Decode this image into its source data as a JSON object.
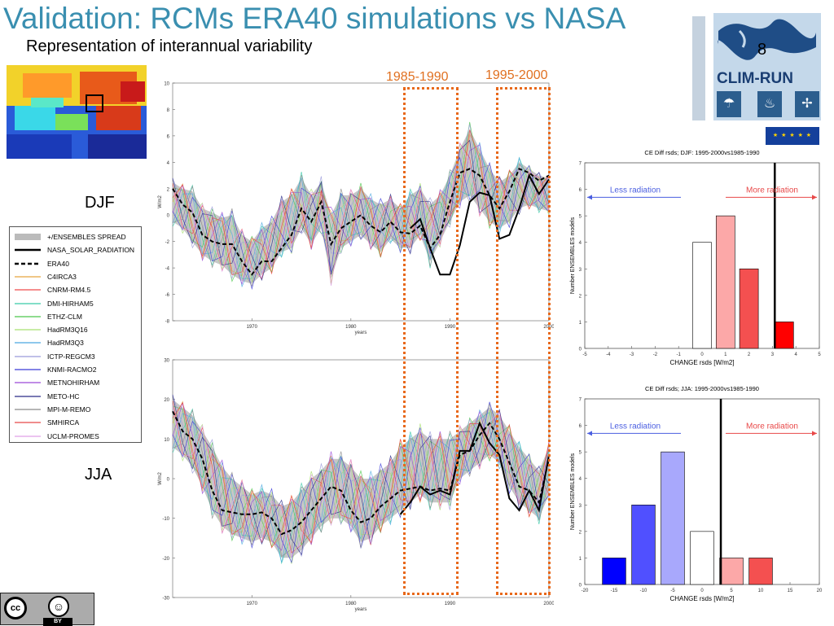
{
  "slide": {
    "title": "Validation: RCMs ERA40 simulations vs NASA",
    "subtitle": "Representation of interannual variability",
    "season_djf": "DJF",
    "season_jja": "JJA",
    "period_1": "1985-1990",
    "period_2": "1995-2000"
  },
  "legend": {
    "items": [
      {
        "label": "+/ENSEMBLES SPREAD",
        "style": "band",
        "color": "#bbbbbb"
      },
      {
        "label": "NASA_SOLAR_RADIATION",
        "style": "solid-thick",
        "color": "#000000"
      },
      {
        "label": "ERA40",
        "style": "dashed-thick",
        "color": "#000000"
      },
      {
        "label": "C4IRCA3",
        "style": "line",
        "color": "#e8a33d"
      },
      {
        "label": "CNRM-RM4.5",
        "style": "line",
        "color": "#ef4a4a"
      },
      {
        "label": "DMI-HIRHAM5",
        "style": "line",
        "color": "#38c9a8"
      },
      {
        "label": "ETHZ-CLM",
        "style": "line",
        "color": "#4cc84c"
      },
      {
        "label": "HadRM3Q16",
        "style": "line",
        "color": "#a8e070"
      },
      {
        "label": "HadRM3Q3",
        "style": "line",
        "color": "#4aa8e0"
      },
      {
        "label": "ICTP-REGCM3",
        "style": "line",
        "color": "#9b9bdb"
      },
      {
        "label": "KNMI-RACMO2",
        "style": "line",
        "color": "#3a3ad8"
      },
      {
        "label": "METNOHIRHAM",
        "style": "line",
        "color": "#9a48d8"
      },
      {
        "label": "METO-HC",
        "style": "line",
        "color": "#2a2a88"
      },
      {
        "label": "MPI-M-REMO",
        "style": "line",
        "color": "#8a8a8a"
      },
      {
        "label": "SMHIRCA",
        "style": "line",
        "color": "#e84848"
      },
      {
        "label": "UCLM-PROMES",
        "style": "line",
        "color": "#e0a0e8"
      }
    ]
  },
  "logo": {
    "name": "CLIM-RUN",
    "slide_number": "8",
    "icons": [
      "umbrella-beach-icon",
      "flame-icon",
      "wind-turbine-icon"
    ]
  },
  "cc": {
    "cc_text": "cc",
    "by_text": "BY"
  },
  "chart_data": [
    {
      "type": "line",
      "panel": "djf-timeseries",
      "ylabel": "W/m2",
      "xlabel": "years",
      "xlim": [
        1962,
        2000
      ],
      "ylim": [
        -8,
        10
      ],
      "xticks": [
        1970,
        1980,
        1990,
        2000
      ],
      "yticks": [
        -8,
        -6,
        -4,
        -2,
        0,
        2,
        4,
        6,
        8,
        10
      ],
      "x": [
        1962,
        1963,
        1964,
        1965,
        1966,
        1967,
        1968,
        1969,
        1970,
        1971,
        1972,
        1973,
        1974,
        1975,
        1976,
        1977,
        1978,
        1979,
        1980,
        1981,
        1982,
        1983,
        1984,
        1985,
        1986,
        1987,
        1988,
        1989,
        1990,
        1991,
        1992,
        1993,
        1994,
        1995,
        1996,
        1997,
        1998,
        1999,
        2000
      ],
      "series": [
        {
          "name": "ERA40",
          "values": [
            2.0,
            0.8,
            0.2,
            -1.5,
            -2.0,
            -2.2,
            -2.2,
            -3.5,
            -4.5,
            -3.5,
            -3.5,
            -2.5,
            -1.5,
            0.5,
            -0.5,
            1.0,
            -2.2,
            -1.0,
            -0.5,
            0.0,
            -0.8,
            -1.3,
            -0.5,
            -1.3,
            -1.4,
            -0.8,
            -2.5,
            -1.5,
            1.0,
            3.2,
            3.5,
            3.0,
            1.5,
            0.5,
            1.8,
            3.5,
            3.2,
            2.6,
            3.0
          ]
        },
        {
          "name": "NASA_SOLAR_RADIATION",
          "values": [
            null,
            null,
            null,
            null,
            null,
            null,
            null,
            null,
            null,
            null,
            null,
            null,
            null,
            null,
            null,
            null,
            null,
            null,
            null,
            null,
            null,
            null,
            null,
            null,
            -1.0,
            -0.3,
            -2.5,
            -4.5,
            -4.5,
            -2.3,
            1.0,
            1.7,
            1.5,
            -1.8,
            -1.5,
            0.5,
            3.0,
            1.6,
            2.7
          ]
        }
      ],
      "band": {
        "name": "+/ENSEMBLES SPREAD",
        "upper": [
          2.5,
          2.0,
          1.8,
          0.5,
          0.2,
          -0.2,
          0.0,
          -1.5,
          -2.0,
          -1.0,
          -0.5,
          1.0,
          1.5,
          2.8,
          1.5,
          2.5,
          0.0,
          1.5,
          1.5,
          2.0,
          1.2,
          0.8,
          1.2,
          0.5,
          1.5,
          2.0,
          0.8,
          1.5,
          3.0,
          5.0,
          6.5,
          5.0,
          3.5,
          2.5,
          3.0,
          4.0,
          3.5,
          3.0,
          2.8
        ],
        "lower": [
          -0.5,
          -1.0,
          -2.0,
          -3.0,
          -3.5,
          -3.8,
          -4.5,
          -5.0,
          -5.2,
          -4.5,
          -4.0,
          -2.8,
          -2.5,
          -1.0,
          -2.2,
          -1.0,
          -4.8,
          -2.5,
          -2.0,
          -1.5,
          -2.2,
          -2.8,
          -1.8,
          -2.5,
          -2.5,
          -1.5,
          -3.5,
          -2.0,
          -0.5,
          1.0,
          1.5,
          0.5,
          -0.5,
          -1.0,
          -0.5,
          0.5,
          0.8,
          0.5,
          0.3
        ]
      }
    },
    {
      "type": "line",
      "panel": "jja-timeseries",
      "ylabel": "W/m2",
      "xlabel": "years",
      "xlim": [
        1962,
        2000
      ],
      "ylim": [
        -30,
        30
      ],
      "xticks": [
        1970,
        1980,
        1990,
        2000
      ],
      "yticks": [
        -30,
        -20,
        -10,
        0,
        10,
        20,
        30
      ],
      "x": [
        1962,
        1963,
        1964,
        1965,
        1966,
        1967,
        1968,
        1969,
        1970,
        1971,
        1972,
        1973,
        1974,
        1975,
        1976,
        1977,
        1978,
        1979,
        1980,
        1981,
        1982,
        1983,
        1984,
        1985,
        1986,
        1987,
        1988,
        1989,
        1990,
        1991,
        1992,
        1993,
        1994,
        1995,
        1996,
        1997,
        1998,
        1999,
        2000
      ],
      "series": [
        {
          "name": "ERA40",
          "values": [
            17,
            12,
            10,
            5,
            -3,
            -8,
            -8.5,
            -9,
            -9,
            -8.5,
            -10,
            -14,
            -13,
            -11,
            -8,
            -5,
            -2,
            -3,
            -8,
            -11,
            -10,
            -7,
            -5,
            -3,
            -2.5,
            -2,
            -3,
            -2.5,
            -3,
            6,
            7,
            11,
            14,
            10,
            4,
            -2,
            -3,
            -6,
            5
          ]
        },
        {
          "name": "NASA_SOLAR_RADIATION",
          "values": [
            null,
            null,
            null,
            null,
            null,
            null,
            null,
            null,
            null,
            null,
            null,
            null,
            null,
            null,
            null,
            null,
            null,
            null,
            null,
            null,
            null,
            null,
            null,
            -9,
            -6,
            -2,
            -4,
            -3,
            -4,
            7,
            7,
            14,
            9,
            6,
            -5,
            -8,
            -3,
            -8,
            6
          ]
        }
      ],
      "band": {
        "name": "+/ENSEMBLES SPREAD",
        "upper": [
          20,
          18,
          16,
          12,
          8,
          3,
          0,
          -2,
          -4,
          -3,
          -4,
          -7,
          -6,
          -3,
          0,
          2,
          5,
          5,
          3,
          0,
          0,
          2,
          4,
          8,
          10,
          12,
          10,
          10,
          10,
          12,
          14,
          16,
          18,
          16,
          12,
          8,
          5,
          2,
          8
        ],
        "lower": [
          8,
          6,
          3,
          -2,
          -8,
          -12,
          -14,
          -15,
          -16,
          -15,
          -16,
          -20,
          -20,
          -18,
          -15,
          -12,
          -10,
          -10,
          -12,
          -16,
          -15,
          -12,
          -10,
          -8,
          -6,
          -4,
          -6,
          -6,
          -6,
          0,
          2,
          4,
          6,
          4,
          -2,
          -6,
          -8,
          -10,
          -4
        ]
      }
    },
    {
      "type": "bar",
      "panel": "djf-histogram",
      "title": "CE Diff rsds; DJF: 1995-2000vs1985-1990",
      "xlabel": "CHANGE rsds [W/m2]",
      "ylabel": "Number ENSEMBLES models",
      "xlim": [
        -5,
        5
      ],
      "ylim": [
        0,
        7
      ],
      "xticks": [
        -5,
        -4,
        -3,
        -2,
        -1,
        0,
        1,
        2,
        3,
        4,
        5
      ],
      "yticks": [
        0,
        1,
        2,
        3,
        4,
        5,
        6,
        7
      ],
      "bars": [
        {
          "x": 0,
          "value": 4,
          "color": "#ffffff"
        },
        {
          "x": 1,
          "value": 5,
          "color": "#fca8a8"
        },
        {
          "x": 2,
          "value": 3,
          "color": "#f45050"
        },
        {
          "x": 3.5,
          "value": 1,
          "color": "#ff0000"
        }
      ],
      "reference_line": 3.1,
      "annotations": {
        "left": "Less radiation",
        "right": "More radiation"
      }
    },
    {
      "type": "bar",
      "panel": "jja-histogram",
      "title": "CE Diff rsds; JJA: 1995-2000vs1985-1990",
      "xlabel": "CHANGE rsds [W/m2]",
      "ylabel": "Number ENSEMBLES models",
      "xlim": [
        -20,
        20
      ],
      "ylim": [
        0,
        7
      ],
      "xticks": [
        -20,
        -15,
        -10,
        -5,
        0,
        5,
        10,
        15,
        20
      ],
      "yticks": [
        0,
        1,
        2,
        3,
        4,
        5,
        6,
        7
      ],
      "bars": [
        {
          "x": -15,
          "value": 1,
          "color": "#0000ff"
        },
        {
          "x": -10,
          "value": 3,
          "color": "#5050ff"
        },
        {
          "x": -5,
          "value": 5,
          "color": "#a8a8fc"
        },
        {
          "x": 0,
          "value": 2,
          "color": "#ffffff"
        },
        {
          "x": 5,
          "value": 1,
          "color": "#fca8a8"
        },
        {
          "x": 10,
          "value": 1,
          "color": "#f45050"
        }
      ],
      "reference_line": 3.2,
      "annotations": {
        "left": "Less radiation",
        "right": "More radiation"
      }
    }
  ]
}
